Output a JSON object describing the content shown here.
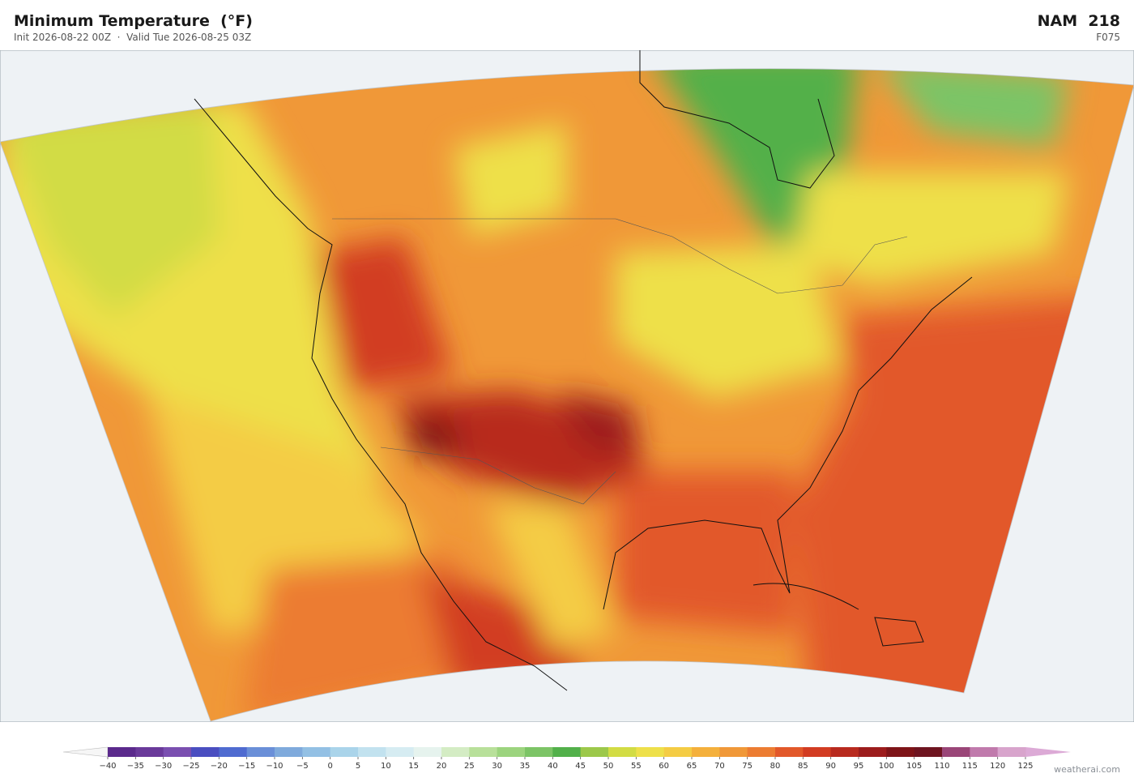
{
  "header": {
    "title": "Minimum Temperature  (°F)",
    "subtitle": "Init 2026-08-22 00Z  ·  Valid Tue 2026-08-25 03Z",
    "model": "NAM  218",
    "forecast_hour": "F075"
  },
  "colorbar": {
    "ticks": [
      {
        "value": -40,
        "label": "−40"
      },
      {
        "value": -35,
        "label": "−35"
      },
      {
        "value": -30,
        "label": "−30"
      },
      {
        "value": -25,
        "label": "−25"
      },
      {
        "value": -20,
        "label": "−20"
      },
      {
        "value": -15,
        "label": "−15"
      },
      {
        "value": -10,
        "label": "−10"
      },
      {
        "value": -5,
        "label": "−5"
      },
      0,
      5,
      10,
      15,
      20,
      25,
      30,
      35,
      40,
      45,
      50,
      55,
      60,
      65,
      70,
      75,
      80,
      85,
      90,
      95,
      100,
      105,
      110,
      115,
      120,
      125
    ],
    "colors": [
      "#5b2a8c",
      "#6a3a9a",
      "#7a4fb0",
      "#4a4ec0",
      "#4f6bd0",
      "#6a8fd8",
      "#7faadc",
      "#93c0e4",
      "#aad4ea",
      "#c2e2ef",
      "#d6ecf2",
      "#e6f3ee",
      "#d4ecc4",
      "#b8e09a",
      "#9cd47e",
      "#7cc466",
      "#52b04a",
      "#9cc84a",
      "#d2dc44",
      "#eee04a",
      "#f4cc44",
      "#f4b03c",
      "#f09838",
      "#ec7c32",
      "#e2582a",
      "#d23c22",
      "#b82a1e",
      "#9c1c1c",
      "#7e1418",
      "#6e1420",
      "#9a4678",
      "#c07aac",
      "#d8a4cc"
    ],
    "under_color": "#f6f6f6",
    "over_color": "#dcaad6"
  },
  "footer": {
    "credit": "weatherai.com"
  }
}
